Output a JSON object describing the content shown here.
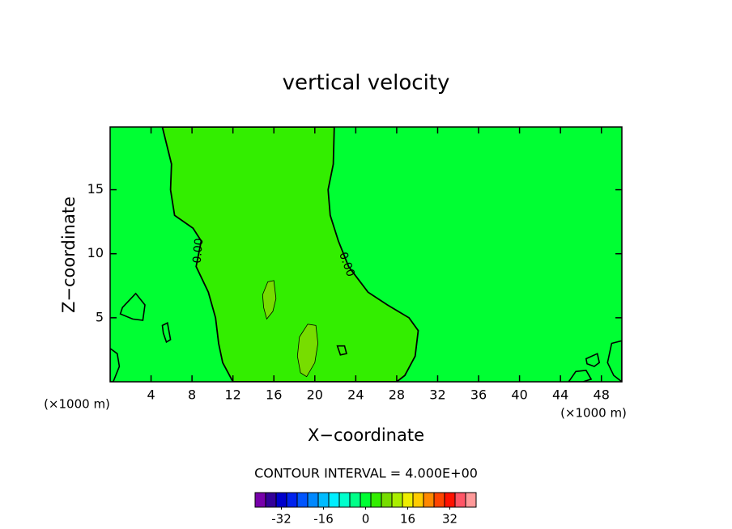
{
  "chart_data": {
    "type": "contour",
    "title": "vertical velocity",
    "x_label": "X−coordinate",
    "y_label": "Z−coordinate",
    "x_unit": "(×1000 m)",
    "y_unit": "(×1000 m)",
    "xlim": [
      0,
      50
    ],
    "ylim": [
      0,
      19.9
    ],
    "xticks": [
      4,
      8,
      12,
      16,
      20,
      24,
      28,
      32,
      36,
      40,
      44,
      48
    ],
    "yticks": [
      5,
      10,
      15
    ],
    "field_color": "#00ff33",
    "line_color": "#000000",
    "regions": [
      {
        "color": "#33ee00",
        "x": [
          12,
          11,
          10.6,
          10.3,
          9.6,
          8.4,
          8.9,
          8.1,
          6.3,
          5.9,
          6,
          5.1,
          21.9,
          21.8,
          21.3,
          21.5,
          22.3,
          23.3,
          25.2,
          27.1,
          29.2,
          30.1,
          29.8,
          28.8,
          28
        ],
        "y": [
          0,
          1.5,
          3,
          5,
          7,
          9,
          11,
          12,
          13,
          15,
          17,
          19.9,
          19.9,
          17,
          15,
          13,
          11,
          9,
          7,
          6,
          5,
          4,
          2,
          0.5,
          0
        ]
      },
      {
        "color": "#77dd00",
        "x": [
          15.3,
          15.9,
          16.2,
          16.0,
          15.4,
          14.9,
          15.0
        ],
        "y": [
          4.9,
          5.5,
          6.5,
          7.9,
          7.8,
          6.8,
          5.8
        ]
      },
      {
        "color": "#77dd00",
        "x": [
          19.2,
          20.0,
          20.3,
          20.1,
          19.3,
          18.5,
          18.3,
          18.6
        ],
        "y": [
          0.4,
          1.5,
          3,
          4.4,
          4.5,
          3.5,
          2,
          0.7
        ]
      },
      {
        "x": [
          1.2,
          2.5,
          3.4,
          3.2,
          2.2,
          1.0
        ],
        "y": [
          5.8,
          6.9,
          6.0,
          4.8,
          4.9,
          5.3
        ]
      },
      {
        "x": [
          5.1,
          5.6,
          5.9,
          5.5,
          5.2
        ],
        "y": [
          4.4,
          4.6,
          3.3,
          3.1,
          3.8
        ]
      },
      {
        "x": [
          22.2,
          22.9,
          23.1,
          22.5
        ],
        "y": [
          2.8,
          2.8,
          2.2,
          2.1
        ]
      },
      {
        "x": [
          46.5,
          47.6,
          47.8,
          47.3,
          46.6
        ],
        "y": [
          1.8,
          2.2,
          1.5,
          1.2,
          1.4
        ]
      },
      {
        "x": [
          0,
          0.7,
          0.9,
          0.3,
          0
        ],
        "y": [
          2.6,
          2.2,
          1.2,
          0,
          0
        ]
      },
      {
        "x": [
          50,
          49,
          48.6,
          49.2,
          50
        ],
        "y": [
          3.2,
          3,
          1.5,
          0.5,
          0
        ]
      },
      {
        "x": [
          44.8,
          45.5,
          46.5,
          47,
          46.2,
          45
        ],
        "y": [
          0,
          0.8,
          0.9,
          0.2,
          0,
          0
        ]
      }
    ],
    "contour_labels": [
      "0.00",
      "0.00"
    ],
    "contour_interval_text": "CONTOUR INTERVAL = 4.000E+00",
    "colorbar": {
      "lim": [
        -42,
        42
      ],
      "ticks": [
        -32,
        -16,
        0,
        16,
        32
      ],
      "colors": [
        "#7700aa",
        "#330099",
        "#0000cc",
        "#0022ee",
        "#0055ff",
        "#0088ff",
        "#00bbff",
        "#00eeff",
        "#00ffcc",
        "#00ff88",
        "#00ff33",
        "#33ee00",
        "#77dd00",
        "#aaee00",
        "#eeee00",
        "#ffcc00",
        "#ff8800",
        "#ff4400",
        "#ff1100",
        "#ff5566",
        "#ff9999"
      ]
    }
  }
}
